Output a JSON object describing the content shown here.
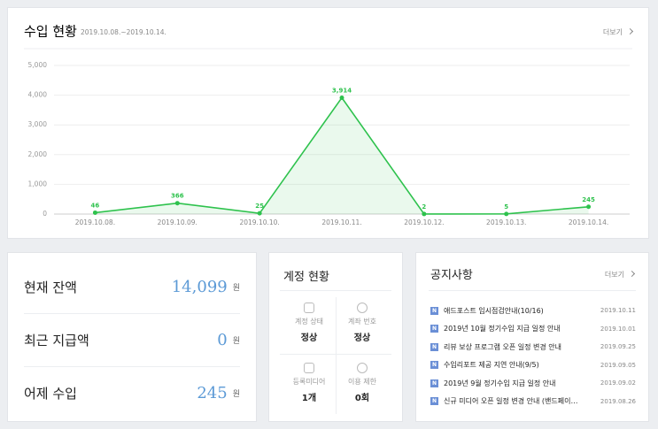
{
  "chart_data": {
    "type": "line",
    "title": "수입 현황",
    "subtitle": "2019.10.08.~2019.10.14.",
    "categories": [
      "2019.10.08.",
      "2019.10.09.",
      "2019.10.10.",
      "2019.10.11.",
      "2019.10.12.",
      "2019.10.13.",
      "2019.10.14."
    ],
    "values": [
      46,
      366,
      25,
      3914,
      2,
      5,
      245
    ],
    "value_labels": [
      "46",
      "366",
      "25",
      "3,914",
      "2",
      "5",
      "245"
    ],
    "color": "#2ec24d",
    "area": true,
    "ylim": [
      0,
      5000
    ],
    "yticks": [
      0,
      {
        "value": 1000,
        "label": "1,000"
      },
      {
        "value": 2000,
        "label": "2,000"
      },
      {
        "value": 3000,
        "label": "3,000"
      },
      {
        "value": 4000,
        "label": "4,000"
      },
      {
        "value": 5000,
        "label": "5,000"
      }
    ],
    "grid": true
  },
  "more_link": "더보기",
  "balance": {
    "rows": [
      {
        "label": "현재 잔액",
        "value": "14,099",
        "unit": "원"
      },
      {
        "label": "최근 지급액",
        "value": "0",
        "unit": "원"
      },
      {
        "label": "어제 수입",
        "value": "245",
        "unit": "원"
      }
    ]
  },
  "account": {
    "title": "계정 현황",
    "items": [
      {
        "label": "계정 상태",
        "value": "정상"
      },
      {
        "label": "계좌 번호",
        "value": "정상"
      },
      {
        "label": "등록미디어",
        "value": "1개"
      },
      {
        "label": "이용 제한",
        "value": "0회"
      }
    ]
  },
  "notices": {
    "title": "공지사항",
    "more": "더보기",
    "badge": "N",
    "items": [
      {
        "text": "애드포스트 임시점검안내(10/16)",
        "date": "2019.10.11"
      },
      {
        "text": "2019년 10월 정기수입 지급 일정 안내",
        "date": "2019.10.01"
      },
      {
        "text": "리뷰 보상 프로그램 오픈 일정 변경 안내",
        "date": "2019.09.25"
      },
      {
        "text": "수입리포트 제공 지연 안내(9/5)",
        "date": "2019.09.05"
      },
      {
        "text": "2019년 9월 정기수입 지급 일정 안내",
        "date": "2019.09.02"
      },
      {
        "text": "신규 미디어 오픈 일정 변경 안내 (밴드페이…",
        "date": "2019.08.26"
      }
    ]
  }
}
